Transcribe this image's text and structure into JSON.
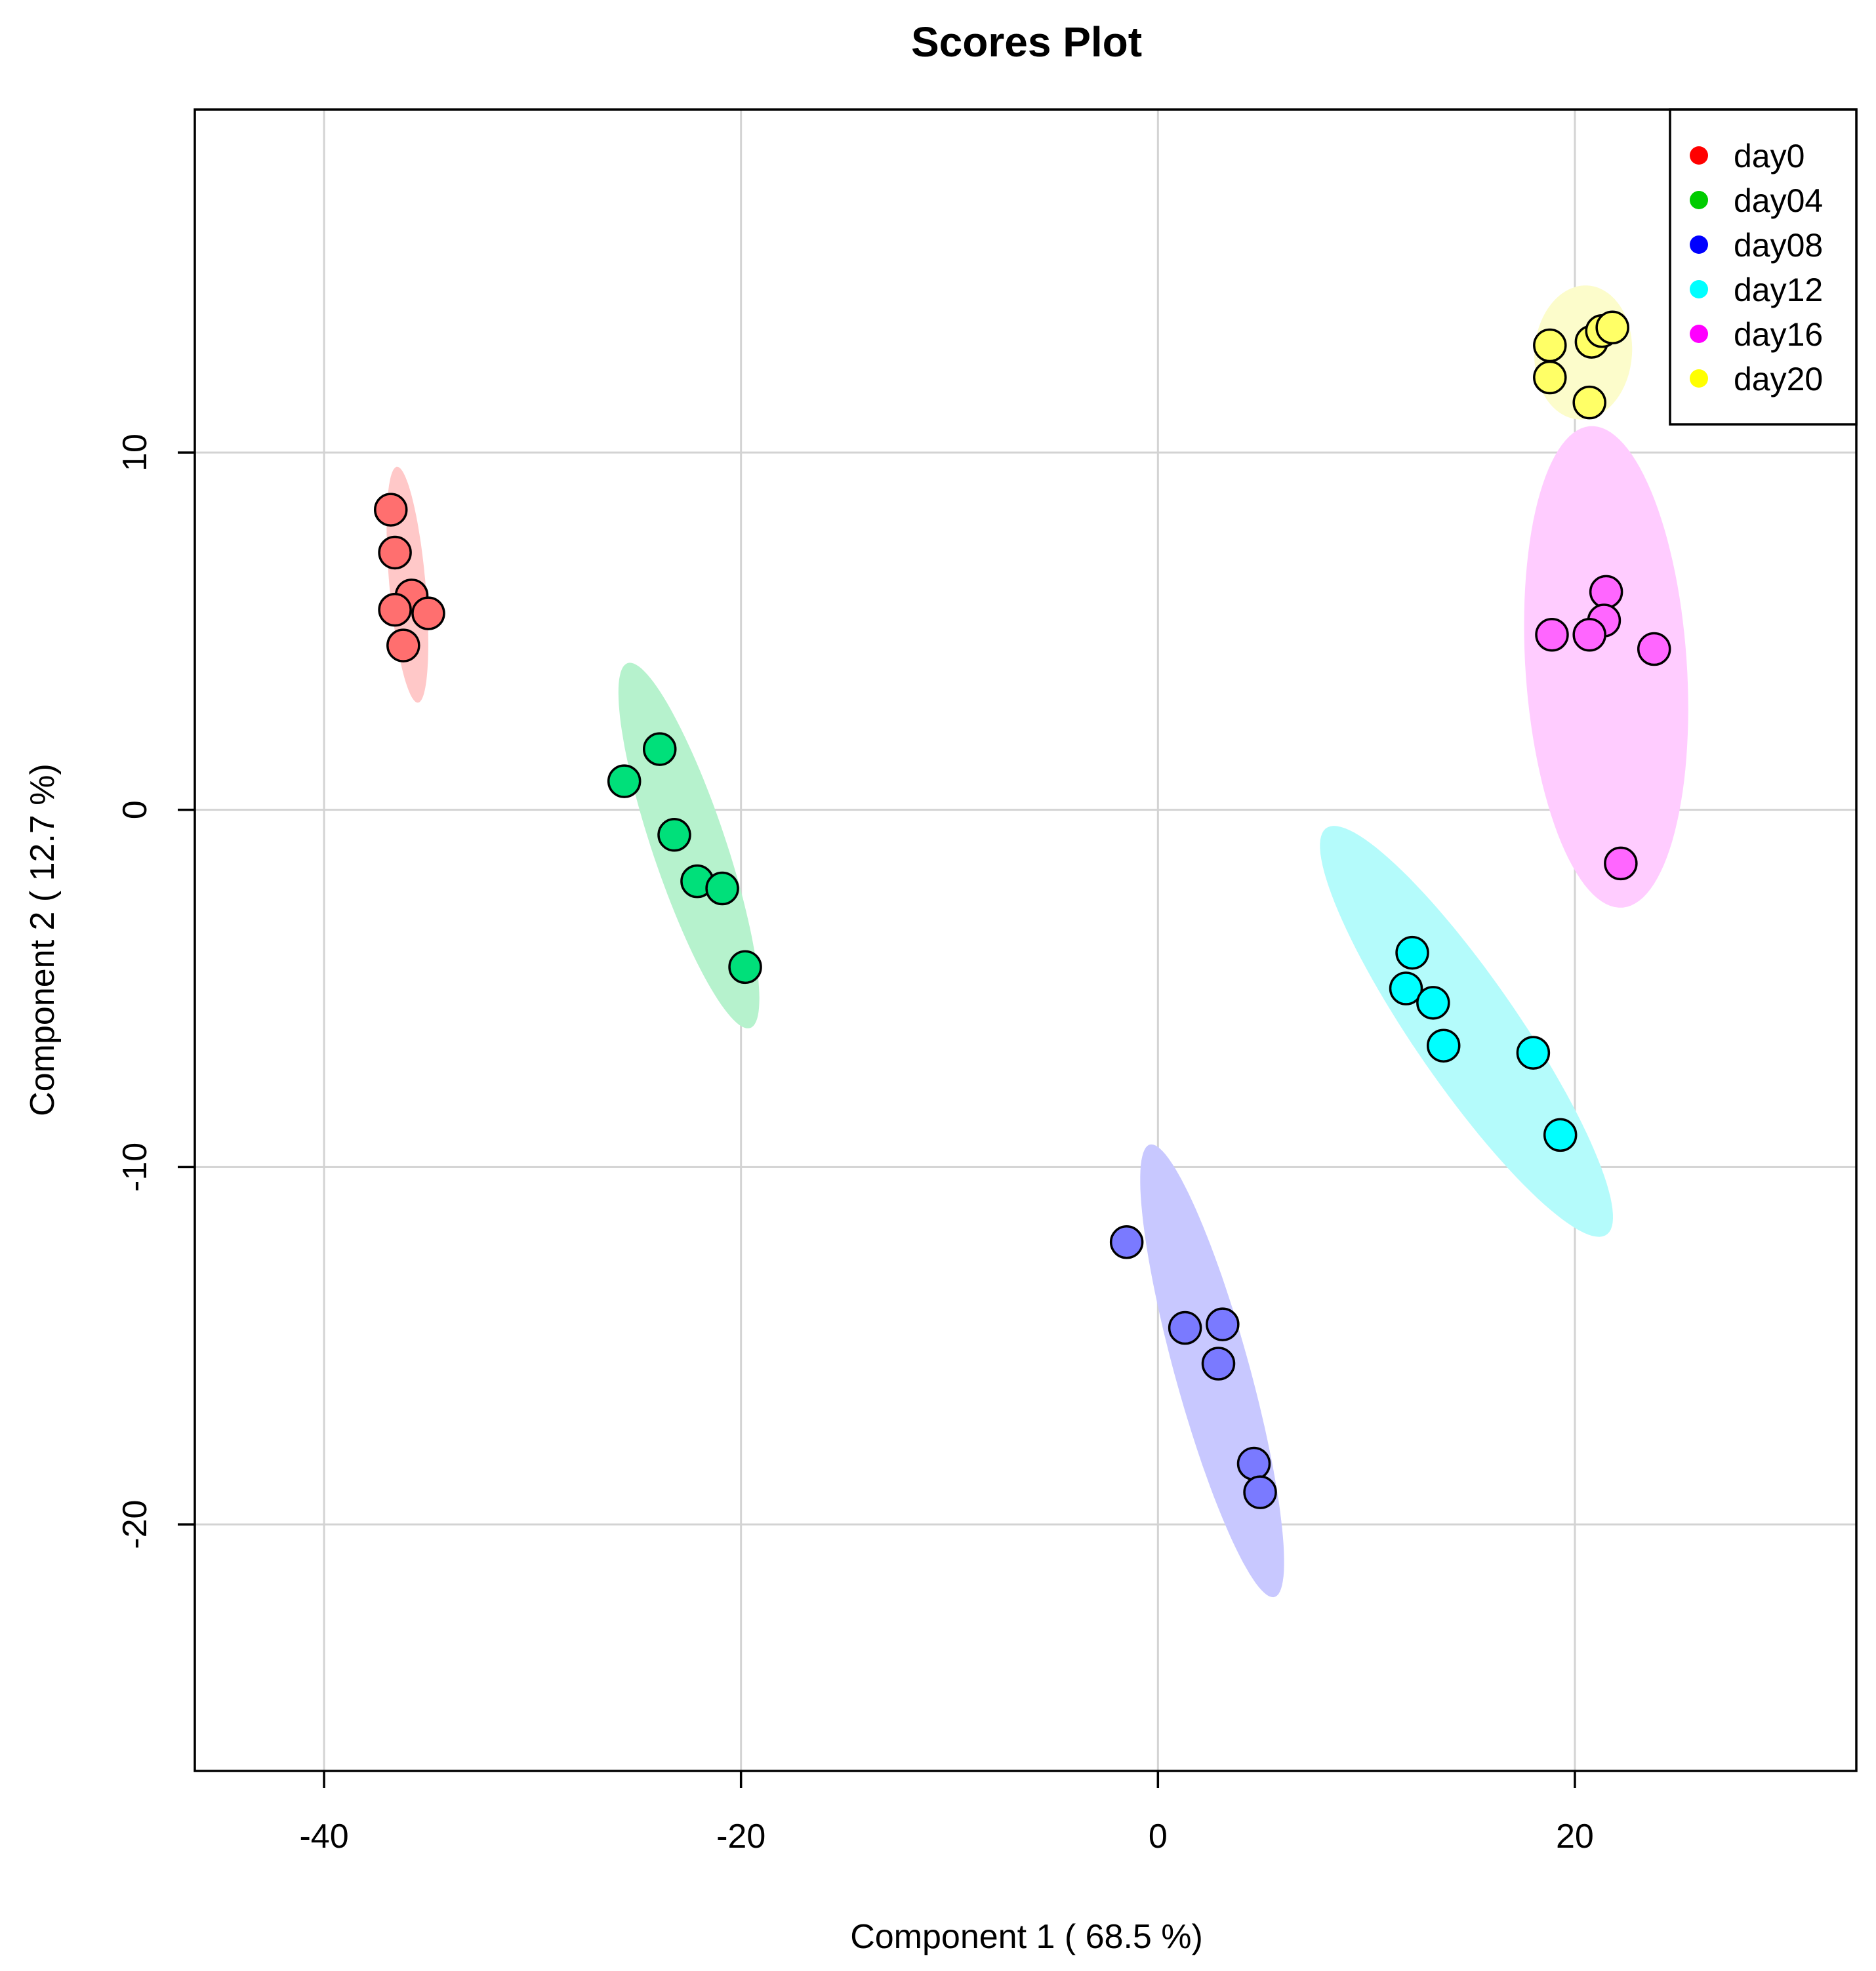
{
  "chart_data": {
    "type": "scatter",
    "title": "Scores Plot",
    "xlabel": "Component 1 ( 68.5 %)",
    "ylabel": "Component 2 ( 12.7 %)",
    "xlim": [
      -46.2,
      33.5
    ],
    "ylim": [
      -26.9,
      19.6
    ],
    "xticks": [
      -40,
      -20,
      0,
      20
    ],
    "yticks": [
      10,
      0,
      -10,
      -20
    ],
    "xtick_labels": [
      "-40",
      "-20",
      "0",
      "20"
    ],
    "ytick_labels": [
      "10",
      "0",
      "-10",
      "-20"
    ],
    "grid": true,
    "legend_position": "top-right",
    "series": [
      {
        "name": "day0",
        "color": "#FF0000",
        "point_color": "#FF6F6F",
        "ellipse_color": "#FFC8C8",
        "points": [
          [
            -36.8,
            8.4
          ],
          [
            -36.6,
            7.2
          ],
          [
            -35.8,
            6.0
          ],
          [
            -36.6,
            5.6
          ],
          [
            -35.0,
            5.5
          ],
          [
            -36.2,
            4.6
          ]
        ],
        "ellipse": {
          "center": [
            -36.0,
            6.3
          ],
          "semi_major": 3.34,
          "semi_minor": 0.86,
          "angle_deg": -80.9
        }
      },
      {
        "name": "day04",
        "color": "#00CC00",
        "point_color": "#00E07A",
        "ellipse_color": "#B6F2CD",
        "points": [
          [
            -23.9,
            1.7
          ],
          [
            -25.6,
            0.8
          ],
          [
            -23.2,
            -0.7
          ],
          [
            -22.1,
            -2.0
          ],
          [
            -20.9,
            -2.2
          ],
          [
            -19.8,
            -4.4
          ]
        ],
        "ellipse": {
          "center": [
            -22.5,
            -1.0
          ],
          "semi_major": 5.92,
          "semi_minor": 1.6,
          "angle_deg": -58.5
        }
      },
      {
        "name": "day08",
        "color": "#0000FF",
        "point_color": "#7A7AFF",
        "ellipse_color": "#C8C8FF",
        "points": [
          [
            -1.5,
            -12.1
          ],
          [
            1.3,
            -14.5
          ],
          [
            3.1,
            -14.4
          ],
          [
            2.9,
            -15.5
          ],
          [
            4.6,
            -18.3
          ],
          [
            4.9,
            -19.1
          ]
        ],
        "ellipse": {
          "center": [
            2.6,
            -15.7
          ],
          "semi_major": 7.02,
          "semi_minor": 1.67,
          "angle_deg": -63.7
        }
      },
      {
        "name": "day12",
        "color": "#00FFFF",
        "point_color": "#00FFFF",
        "ellipse_color": "#B4FBFB",
        "points": [
          [
            12.2,
            -4.0
          ],
          [
            11.9,
            -5.0
          ],
          [
            13.2,
            -5.4
          ],
          [
            13.7,
            -6.6
          ],
          [
            18.0,
            -6.8
          ],
          [
            19.3,
            -9.1
          ]
        ],
        "ellipse": {
          "center": [
            14.8,
            -6.2
          ],
          "semi_major": 8.87,
          "semi_minor": 1.95,
          "angle_deg": -38.7
        }
      },
      {
        "name": "day16",
        "color": "#FF00FF",
        "point_color": "#FF66FF",
        "ellipse_color": "#FFCCFF",
        "points": [
          [
            21.5,
            6.1
          ],
          [
            21.4,
            5.3
          ],
          [
            18.9,
            4.9
          ],
          [
            20.7,
            4.9
          ],
          [
            23.8,
            4.5
          ],
          [
            22.2,
            -1.5
          ]
        ],
        "ellipse": {
          "center": [
            21.5,
            4.0
          ],
          "semi_major": 6.79,
          "semi_minor": 3.85,
          "angle_deg": -81.5
        }
      },
      {
        "name": "day20",
        "color": "#FFFF00",
        "point_color": "#FFFF66",
        "ellipse_color": "#FCFCCB",
        "points": [
          [
            18.8,
            13.0
          ],
          [
            18.8,
            12.1
          ],
          [
            20.8,
            13.1
          ],
          [
            21.3,
            13.4
          ],
          [
            21.8,
            13.5
          ],
          [
            20.7,
            11.4
          ]
        ],
        "ellipse": {
          "center": [
            20.4,
            12.8
          ],
          "semi_major": 2.35,
          "semi_minor": 1.87,
          "angle_deg": 6.0
        }
      }
    ]
  }
}
